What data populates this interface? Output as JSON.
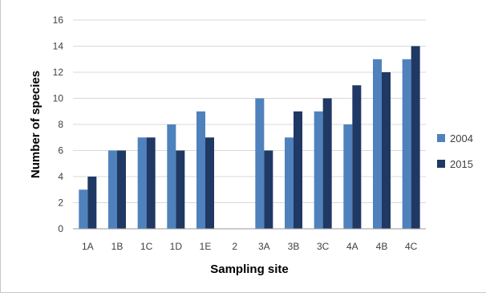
{
  "chart_data": {
    "type": "bar",
    "categories": [
      "1A",
      "1B",
      "1C",
      "1D",
      "1E",
      "2",
      "3A",
      "3B",
      "3C",
      "4A",
      "4B",
      "4C"
    ],
    "series": [
      {
        "name": "2004",
        "color": "#4f81bd",
        "values": [
          3,
          6,
          7,
          8,
          9,
          0,
          10,
          7,
          9,
          8,
          13,
          13
        ]
      },
      {
        "name": "2015",
        "color": "#1f3864",
        "values": [
          4,
          6,
          7,
          6,
          7,
          0,
          6,
          9,
          10,
          11,
          12,
          14
        ]
      }
    ],
    "xlabel": "Sampling site",
    "ylabel": "Number of species",
    "ylim": [
      0,
      16
    ],
    "yticks": [
      0,
      2,
      4,
      6,
      8,
      10,
      12,
      14,
      16
    ],
    "grid": true,
    "legend_position": "right"
  }
}
